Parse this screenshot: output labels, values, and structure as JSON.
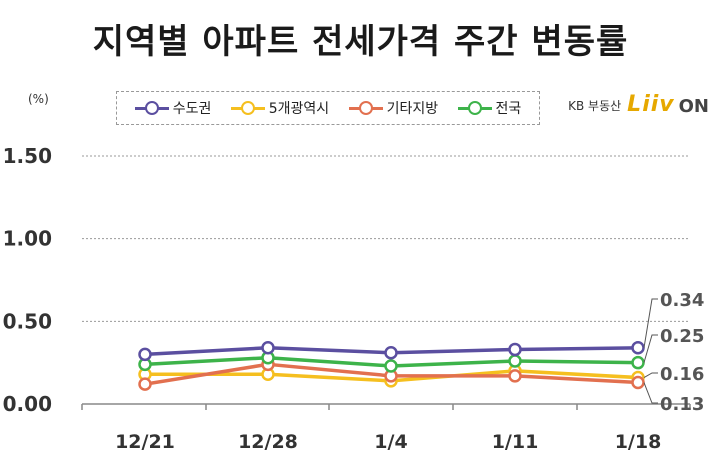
{
  "title": "지역별 아파트 전세가격 주간 변동률",
  "unit": "(%)",
  "brand": {
    "prefix": "KB 부동산",
    "logo": "Liiv",
    "suffix": "ON"
  },
  "chart_data": {
    "type": "line",
    "title": "지역별 아파트 전세가격 주간 변동률",
    "ylabel": "(%)",
    "xlabel": "",
    "categories": [
      "12/21",
      "12/28",
      "1/4",
      "1/11",
      "1/18"
    ],
    "ylim": [
      0,
      1.5
    ],
    "yticks": [
      "0.00",
      "0.50",
      "1.00",
      "1.50"
    ],
    "grid": true,
    "legend": "top",
    "series": [
      {
        "name": "수도권",
        "color": "#5b4fa0",
        "values": [
          0.3,
          0.34,
          0.31,
          0.33,
          0.34
        ]
      },
      {
        "name": "5개광역시",
        "color": "#f5bf1f",
        "values": [
          0.18,
          0.18,
          0.14,
          0.2,
          0.16
        ]
      },
      {
        "name": "기타지방",
        "color": "#e2704f",
        "values": [
          0.12,
          0.24,
          0.17,
          0.17,
          0.13
        ]
      },
      {
        "name": "전국",
        "color": "#3db34a",
        "values": [
          0.24,
          0.28,
          0.23,
          0.26,
          0.25
        ]
      }
    ],
    "end_labels": [
      "0.34",
      "0.25",
      "0.16",
      "0.13"
    ]
  }
}
